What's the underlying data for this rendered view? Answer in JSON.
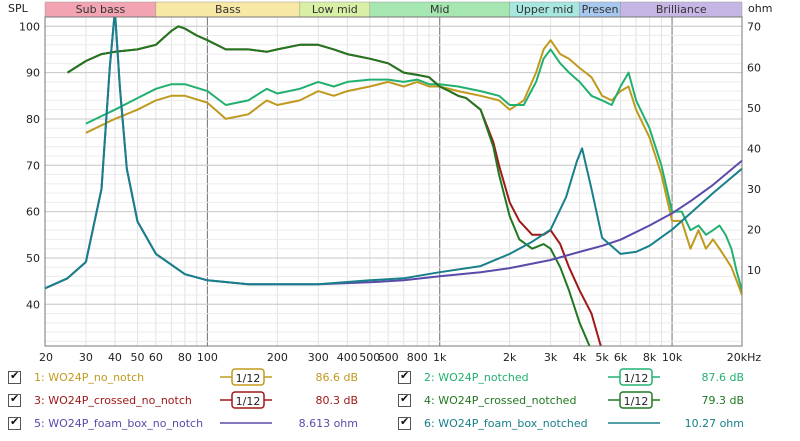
{
  "chart_data": {
    "type": "line",
    "title": "",
    "xlabel": "Hz",
    "ylabel": "SPL",
    "ylabel_right": "ohm",
    "x_scale": "log",
    "xlim": [
      20,
      20000
    ],
    "ylim": [
      31,
      102
    ],
    "y2lim": [
      -8.7,
      72.4
    ],
    "x_ticks": [
      20,
      30,
      40,
      50,
      60,
      80,
      100,
      200,
      300,
      400,
      500,
      600,
      800,
      1000,
      2000,
      3000,
      4000,
      5000,
      6000,
      8000,
      10000,
      20000
    ],
    "x_tick_labels": [
      "20",
      "30",
      "40",
      "50",
      "60",
      "80",
      "100",
      "200",
      "300",
      "400",
      "500",
      "600",
      "800",
      "1k",
      "2k",
      "3k",
      "4k",
      "5k",
      "6k",
      "8k",
      "10k",
      "20kHz"
    ],
    "y_ticks": [
      40,
      50,
      60,
      70,
      80,
      90,
      100
    ],
    "y2_ticks": [
      10,
      20,
      30,
      40,
      50,
      60,
      70
    ],
    "bands": [
      {
        "label": "Sub bass",
        "from": 20,
        "to": 60,
        "color": "#f2a4b2"
      },
      {
        "label": "Bass",
        "from": 60,
        "to": 250,
        "color": "#f8e8a6"
      },
      {
        "label": "Low mid",
        "from": 250,
        "to": 500,
        "color": "#d8f0a6"
      },
      {
        "label": "Mid",
        "from": 500,
        "to": 2000,
        "color": "#a6e6b0"
      },
      {
        "label": "Upper mid",
        "from": 2000,
        "to": 4000,
        "color": "#a6e8e0"
      },
      {
        "label": "Presen",
        "from": 4000,
        "to": 6000,
        "color": "#a6c8ee"
      },
      {
        "label": "Brilliance",
        "from": 6000,
        "to": 20000,
        "color": "#c6b6e6"
      }
    ],
    "series": [
      {
        "id": 1,
        "name": "WO24P_no_notch",
        "color": "#c09a1e",
        "axis": "left",
        "x": [
          30,
          40,
          50,
          60,
          70,
          80,
          100,
          120,
          150,
          180,
          200,
          250,
          300,
          350,
          400,
          500,
          600,
          700,
          800,
          900,
          1000,
          1200,
          1500,
          1800,
          2000,
          2300,
          2600,
          2800,
          3000,
          3300,
          3600,
          4000,
          4500,
          5000,
          5500,
          6000,
          6500,
          7000,
          8000,
          9000,
          10000,
          11000,
          12000,
          13000,
          14000,
          15000,
          16000,
          17000,
          18000,
          19000,
          20000
        ],
        "y": [
          77,
          80,
          82,
          84,
          85,
          85,
          83.5,
          80,
          81,
          84,
          83,
          84,
          86,
          85,
          86,
          87,
          88,
          87,
          88,
          87,
          87,
          86,
          85,
          84,
          82,
          84,
          90,
          95,
          97,
          94,
          93,
          91,
          89,
          85,
          84,
          86,
          87,
          82,
          76,
          68,
          58,
          58,
          52,
          56,
          52,
          54,
          52,
          50,
          48,
          45,
          42
        ]
      },
      {
        "id": 2,
        "name": "WO24P_notched",
        "color": "#22b070",
        "axis": "left",
        "x": [
          30,
          40,
          50,
          60,
          70,
          80,
          100,
          120,
          150,
          180,
          200,
          250,
          300,
          350,
          400,
          500,
          600,
          700,
          800,
          900,
          1000,
          1200,
          1500,
          1800,
          2000,
          2300,
          2600,
          2800,
          3000,
          3300,
          3600,
          4000,
          4500,
          5000,
          5500,
          6000,
          6500,
          7000,
          8000,
          9000,
          10000,
          11000,
          12000,
          13000,
          14000,
          15000,
          16000,
          17000,
          18000,
          19000,
          20000
        ],
        "y": [
          79,
          82,
          84.5,
          86.5,
          87.5,
          87.5,
          86,
          83,
          84,
          86.5,
          85.5,
          86.5,
          88,
          87,
          88,
          88.5,
          88.5,
          88,
          88.5,
          87.5,
          87.5,
          87,
          86,
          85,
          83,
          83,
          88,
          93,
          95,
          92,
          90,
          88,
          85,
          84,
          83,
          87,
          90,
          84,
          78,
          70,
          60,
          60,
          56,
          57,
          55,
          56,
          57,
          55,
          52,
          47,
          43
        ]
      },
      {
        "id": 3,
        "name": "WO24P_crossed_no_notch",
        "color": "#a01818",
        "axis": "left",
        "x": [
          25,
          30,
          35,
          40,
          50,
          60,
          70,
          75,
          80,
          90,
          100,
          120,
          150,
          180,
          200,
          250,
          300,
          350,
          400,
          500,
          600,
          700,
          800,
          900,
          1000,
          1100,
          1200,
          1300,
          1500,
          1700,
          1800,
          2000,
          2200,
          2500,
          2800,
          3000,
          3300,
          3600,
          4000,
          4500,
          5000
        ],
        "y": [
          90,
          92.5,
          94,
          94.5,
          95,
          96,
          99,
          100,
          99.5,
          98,
          97,
          95,
          95,
          94.5,
          95,
          96,
          96,
          95,
          94,
          93,
          92,
          90,
          89.5,
          89,
          87,
          86,
          85,
          84.5,
          82,
          75,
          70,
          62,
          58,
          55,
          55,
          56,
          53,
          48,
          43,
          38,
          30
        ]
      },
      {
        "id": 4,
        "name": "WO24P_crossed_notched",
        "color": "#207820",
        "axis": "left",
        "x": [
          25,
          30,
          35,
          40,
          50,
          60,
          70,
          75,
          80,
          90,
          100,
          120,
          150,
          180,
          200,
          250,
          300,
          350,
          400,
          500,
          600,
          700,
          800,
          900,
          1000,
          1100,
          1200,
          1300,
          1500,
          1700,
          1800,
          2000,
          2200,
          2500,
          2800,
          3000,
          3300,
          3600,
          4000,
          4500
        ],
        "y": [
          90,
          92.5,
          94,
          94.5,
          95,
          96,
          99,
          100,
          99.5,
          98,
          97,
          95,
          95,
          94.5,
          95,
          96,
          96,
          95,
          94,
          93,
          92,
          90,
          89.5,
          89,
          87,
          86,
          85,
          84.5,
          82,
          74,
          68,
          59,
          54,
          52,
          53,
          52,
          48,
          43,
          36,
          30
        ]
      },
      {
        "id": 5,
        "name": "WO24P_foam_box_no_notch",
        "color": "#5a4aaa",
        "axis": "right",
        "x": [
          20,
          25,
          30,
          35,
          38,
          40,
          42,
          45,
          50,
          60,
          80,
          100,
          150,
          200,
          300,
          500,
          700,
          1000,
          1500,
          2000,
          3000,
          4000,
          5000,
          6000,
          8000,
          10000,
          12000,
          15000,
          20000
        ],
        "y": [
          5.5,
          8,
          12,
          30,
          60,
          74,
          55,
          35,
          22,
          14,
          9,
          7.5,
          6.5,
          6.5,
          6.5,
          7,
          7.5,
          8.5,
          9.5,
          10.5,
          12.5,
          14.5,
          16,
          17.5,
          21,
          24,
          27,
          31,
          37
        ]
      },
      {
        "id": 6,
        "name": "WO24P_foam_box_notched",
        "color": "#18808a",
        "axis": "right",
        "x": [
          20,
          25,
          30,
          35,
          38,
          40,
          42,
          45,
          50,
          60,
          80,
          100,
          150,
          200,
          300,
          500,
          700,
          1000,
          1500,
          2000,
          2500,
          3000,
          3500,
          3900,
          4100,
          4500,
          5000,
          6000,
          7000,
          8000,
          10000,
          12000,
          15000,
          20000
        ],
        "y": [
          5.5,
          8,
          12,
          30,
          60,
          74,
          55,
          35,
          22,
          14,
          9,
          7.5,
          6.5,
          6.5,
          6.5,
          7.5,
          8,
          9.5,
          11,
          14,
          17,
          20,
          28,
          37,
          40,
          30,
          18,
          14,
          14.5,
          16,
          20,
          24,
          29,
          35
        ]
      }
    ],
    "legend": [
      {
        "label": "1: WO24P_no_notch",
        "smoothing": "1/12",
        "value": "86.6 dB",
        "color": "#c09a1e",
        "style": "box"
      },
      {
        "label": "2: WO24P_notched",
        "smoothing": "1/12",
        "value": "87.6 dB",
        "color": "#22b070",
        "style": "box"
      },
      {
        "label": "3: WO24P_crossed_no_notch",
        "smoothing": "1/12",
        "value": "80.3 dB",
        "color": "#a01818",
        "style": "box"
      },
      {
        "label": "4: WO24P_crossed_notched",
        "smoothing": "1/12",
        "value": "79.3 dB",
        "color": "#207820",
        "style": "box"
      },
      {
        "label": "5: WO24P_foam_box_no_notch",
        "smoothing": "",
        "value": "8.613 ohm",
        "color": "#5a4aaa",
        "style": "line"
      },
      {
        "label": "6: WO24P_foam_box_notched",
        "smoothing": "",
        "value": "10.27 ohm",
        "color": "#18808a",
        "style": "line"
      }
    ]
  }
}
